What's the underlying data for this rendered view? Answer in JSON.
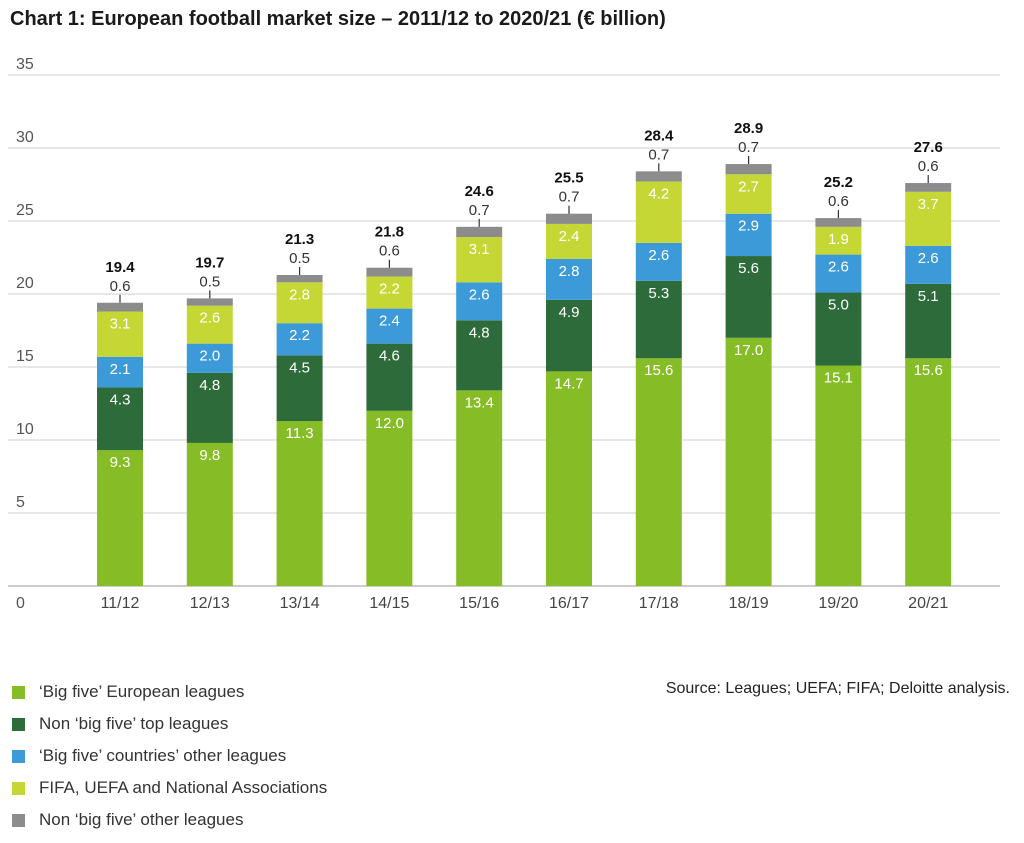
{
  "chart_data": {
    "type": "bar",
    "stacked": true,
    "title": "Chart 1: European football market size – 2011/12 to 2020/21 (€ billion)",
    "categories": [
      "11/12",
      "12/13",
      "13/14",
      "14/15",
      "15/16",
      "16/17",
      "17/18",
      "18/19",
      "19/20",
      "20/21"
    ],
    "ylim": [
      0,
      35
    ],
    "yticks": [
      "0",
      "5",
      "10",
      "15",
      "20",
      "25",
      "30",
      "35"
    ],
    "totals": [
      "19.4",
      "19.7",
      "21.3",
      "21.8",
      "24.6",
      "25.5",
      "28.4",
      "28.9",
      "25.2",
      "27.6"
    ],
    "series": [
      {
        "name": "‘Big five’ European leagues",
        "color": "#86bc25",
        "values": [
          9.3,
          9.8,
          11.3,
          12.0,
          13.4,
          14.7,
          15.6,
          17.0,
          15.1,
          15.6
        ],
        "labels": [
          "9.3",
          "9.8",
          "11.3",
          "12.0",
          "13.4",
          "14.7",
          "15.6",
          "17.0",
          "15.1",
          "15.6"
        ]
      },
      {
        "name": "Non ‘big five’ top leagues",
        "color": "#2e6b3a",
        "values": [
          4.3,
          4.8,
          4.5,
          4.6,
          4.8,
          4.9,
          5.3,
          5.6,
          5.0,
          5.1
        ],
        "labels": [
          "4.3",
          "4.8",
          "4.5",
          "4.6",
          "4.8",
          "4.9",
          "5.3",
          "5.6",
          "5.0",
          "5.1"
        ]
      },
      {
        "name": "‘Big five’ countries’ other leagues",
        "color": "#3d9ad8",
        "values": [
          2.1,
          2.0,
          2.2,
          2.4,
          2.6,
          2.8,
          2.6,
          2.9,
          2.6,
          2.6
        ],
        "labels": [
          "2.1",
          "2.0",
          "2.2",
          "2.4",
          "2.6",
          "2.8",
          "2.6",
          "2.9",
          "2.6",
          "2.6"
        ]
      },
      {
        "name": "FIFA, UEFA and National Associations",
        "color": "#c5d734",
        "values": [
          3.1,
          2.6,
          2.8,
          2.2,
          3.1,
          2.4,
          4.2,
          2.7,
          1.9,
          3.7
        ],
        "labels": [
          "3.1",
          "2.6",
          "2.8",
          "2.2",
          "3.1",
          "2.4",
          "4.2",
          "2.7",
          "1.9",
          "3.7"
        ]
      },
      {
        "name": "Non ‘big five’ other leagues",
        "color": "#8c8c8c",
        "values": [
          0.6,
          0.5,
          0.5,
          0.6,
          0.7,
          0.7,
          0.7,
          0.7,
          0.6,
          0.6
        ],
        "labels": [
          "0.6",
          "0.5",
          "0.5",
          "0.6",
          "0.7",
          "0.7",
          "0.7",
          "0.7",
          "0.6",
          "0.6"
        ]
      }
    ],
    "grid": true,
    "legend_position": "bottom-left"
  },
  "source": "Source: Leagues; UEFA; FIFA; Deloitte analysis."
}
